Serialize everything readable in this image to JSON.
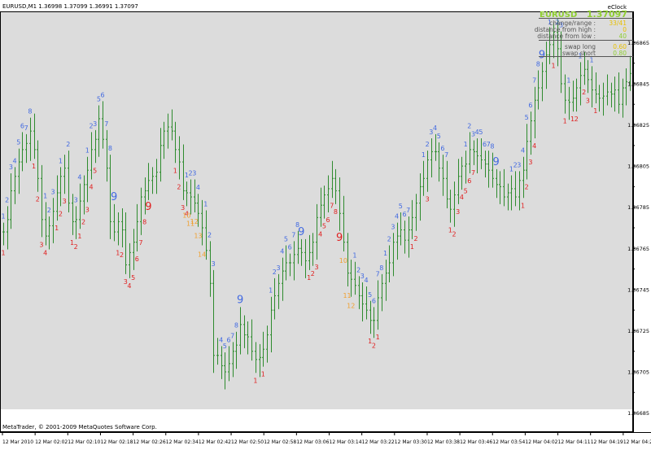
{
  "window": {
    "title": "EURUSD,M1  1.36998 1.37099 1.36991 1.37097"
  },
  "footer": {
    "copyright": "MetaTrader, © 2001-2009 MetaQuotes Software Corp."
  },
  "info_panel": {
    "indicator_name": "eClock",
    "symbol": "EURUSD",
    "price": "1.37097",
    "rows": [
      {
        "label": "change/range :",
        "value": "33/41"
      },
      {
        "label": "distance from high :",
        "value": "0"
      },
      {
        "label": "distance from low :",
        "value": "40"
      }
    ],
    "swap_rows": [
      {
        "label": "swap long",
        "value": "0.60"
      },
      {
        "label": "swap short",
        "value": "0.80"
      }
    ]
  },
  "colors": {
    "plot_bg": "#dcdcdc",
    "candle": "#2e8b2e",
    "count_up": "#4169e1",
    "count_down": "#e02020",
    "count_orange": "#f0a030",
    "panel_green": "#8fce32",
    "panel_yellow": "#e8c000",
    "axis_text": "#000000"
  },
  "chart_data": {
    "type": "candlestick",
    "symbol": "EURUSD",
    "timeframe": "M1",
    "ohlc": {
      "open": 1.36998,
      "high": 1.37099,
      "low": 1.36991,
      "close": 1.37097
    },
    "y_ticks": [
      "1.36865",
      "1.36845",
      "1.36825",
      "1.36805",
      "1.36785",
      "1.36765",
      "1.36745",
      "1.36725",
      "1.36705",
      "1.36685"
    ],
    "y_ticks_minor": [
      "1.36855",
      "1.36835",
      "1.36815",
      "1.36795",
      "1.36775",
      "1.36755",
      "1.36735",
      "1.36715",
      "1.36695"
    ],
    "x_ticks": [
      "12 Mar 2010",
      "12 Mar 02:02",
      "12 Mar 02:10",
      "12 Mar 02:18",
      "12 Mar 02:26",
      "12 Mar 02:34",
      "12 Mar 02:42",
      "12 Mar 02:50",
      "12 Mar 02:58",
      "12 Mar 03:06",
      "12 Mar 03:14",
      "12 Mar 03:22",
      "12 Mar 03:30",
      "12 Mar 03:38",
      "12 Mar 03:46",
      "12 Mar 03:54",
      "12 Mar 04:02",
      "12 Mar 04:11",
      "12 Mar 04:19",
      "12 Mar 04:27"
    ],
    "ylim": [
      1.36688,
      1.36877
    ],
    "closes": [
      1.36773,
      1.36779,
      1.36793,
      1.368,
      1.36807,
      1.36813,
      1.36816,
      1.36822,
      1.36813,
      1.36799,
      1.36779,
      1.36771,
      1.36776,
      1.36783,
      1.36792,
      1.368,
      1.36804,
      1.36787,
      1.36778,
      1.36779,
      1.36788,
      1.36796,
      1.36803,
      1.36813,
      1.36818,
      1.36828,
      1.36818,
      1.36804,
      1.36778,
      1.36773,
      1.36778,
      1.36774,
      1.36757,
      1.36763,
      1.36768,
      1.36778,
      1.3679,
      1.36793,
      1.36798,
      1.368,
      1.36802,
      1.36815,
      1.36822,
      1.36824,
      1.36822,
      1.36813,
      1.36807,
      1.36793,
      1.36792,
      1.3679,
      1.36787,
      1.36782,
      1.36775,
      1.36764,
      1.36748,
      1.36713,
      1.36713,
      1.36708,
      1.36705,
      1.36709,
      1.36715,
      1.36718,
      1.36728,
      1.36723,
      1.36722,
      1.36715,
      1.36711,
      1.36712,
      1.36716,
      1.36723,
      1.36735,
      1.36742,
      1.36748,
      1.36754,
      1.36758,
      1.36758,
      1.36762,
      1.36765,
      1.36763,
      1.36759,
      1.36763,
      1.36768,
      1.3678,
      1.36786,
      1.36791,
      1.36794,
      1.36799,
      1.36793,
      1.36782,
      1.36768,
      1.36753,
      1.3675,
      1.36747,
      1.36742,
      1.36738,
      1.36735,
      1.3673,
      1.3673,
      1.36741,
      1.36748,
      1.36753,
      1.36758,
      1.36768,
      1.36771,
      1.36774,
      1.36769,
      1.36774,
      1.3678,
      1.36787,
      1.36795,
      1.36799,
      1.36808,
      1.36812,
      1.36812,
      1.36804,
      1.36799,
      1.36789,
      1.36784,
      1.36791,
      1.368,
      1.36805,
      1.36806,
      1.36813,
      1.36812,
      1.3681,
      1.36808,
      1.36806,
      1.36803,
      1.36799,
      1.36796,
      1.36795,
      1.3679,
      1.36792,
      1.36794,
      1.3679,
      1.36798,
      1.36803,
      1.36817,
      1.36827,
      1.36837,
      1.36843,
      1.36851,
      1.36859,
      1.36864,
      1.3687,
      1.36862,
      1.36845,
      1.36837,
      1.36836,
      1.36838,
      1.36843,
      1.36849,
      1.36852,
      1.36847,
      1.36842,
      1.3684,
      1.36838,
      1.36839,
      1.36841,
      1.3684,
      1.36842,
      1.36835,
      1.36843,
      1.36846,
      1.3685
    ],
    "count_labels_up": [
      {
        "bar": 0,
        "text": "1",
        "size": "small"
      },
      {
        "bar": 1,
        "text": "2",
        "size": "small"
      },
      {
        "bar": 2,
        "text": "3",
        "size": "small"
      },
      {
        "bar": 3,
        "text": "4",
        "size": "small"
      },
      {
        "bar": 4,
        "text": "5",
        "size": "small"
      },
      {
        "bar": 5,
        "text": "6",
        "size": "small"
      },
      {
        "bar": 6,
        "text": "7",
        "size": "small"
      },
      {
        "bar": 7,
        "text": "8",
        "size": "small"
      },
      {
        "bar": 11,
        "text": "1",
        "size": "small"
      },
      {
        "bar": 12,
        "text": "2",
        "size": "small"
      },
      {
        "bar": 13,
        "text": "3",
        "size": "small"
      },
      {
        "bar": 15,
        "text": "1",
        "size": "small"
      },
      {
        "bar": 17,
        "text": "2",
        "size": "small"
      },
      {
        "bar": 19,
        "text": "3",
        "size": "small"
      },
      {
        "bar": 20,
        "text": "4",
        "size": "small"
      },
      {
        "bar": 22,
        "text": "1",
        "size": "small"
      },
      {
        "bar": 23,
        "text": "2",
        "size": "small"
      },
      {
        "bar": 24,
        "text": "3",
        "size": "small"
      },
      {
        "bar": 25,
        "text": "5",
        "size": "small"
      },
      {
        "bar": 26,
        "text": "6",
        "size": "small"
      },
      {
        "bar": 27,
        "text": "7",
        "size": "small"
      },
      {
        "bar": 28,
        "text": "8",
        "size": "small"
      },
      {
        "bar": 29,
        "text": "9",
        "size": "large"
      },
      {
        "bar": 48,
        "text": "1",
        "size": "small"
      },
      {
        "bar": 49,
        "text": "2",
        "size": "small"
      },
      {
        "bar": 50,
        "text": "3",
        "size": "small"
      },
      {
        "bar": 51,
        "text": "4",
        "size": "small"
      },
      {
        "bar": 53,
        "text": "1",
        "size": "small"
      },
      {
        "bar": 54,
        "text": "2",
        "size": "small"
      },
      {
        "bar": 55,
        "text": "3",
        "size": "small"
      },
      {
        "bar": 57,
        "text": "4",
        "size": "small"
      },
      {
        "bar": 58,
        "text": "5",
        "size": "small"
      },
      {
        "bar": 59,
        "text": "6",
        "size": "small"
      },
      {
        "bar": 60,
        "text": "7",
        "size": "small"
      },
      {
        "bar": 61,
        "text": "8",
        "size": "small"
      },
      {
        "bar": 62,
        "text": "9",
        "size": "large"
      },
      {
        "bar": 70,
        "text": "1",
        "size": "small"
      },
      {
        "bar": 71,
        "text": "2",
        "size": "small"
      },
      {
        "bar": 72,
        "text": "3",
        "size": "small"
      },
      {
        "bar": 73,
        "text": "4",
        "size": "small"
      },
      {
        "bar": 74,
        "text": "5",
        "size": "small"
      },
      {
        "bar": 75,
        "text": "6",
        "size": "small"
      },
      {
        "bar": 76,
        "text": "7",
        "size": "small"
      },
      {
        "bar": 77,
        "text": "8",
        "size": "small"
      },
      {
        "bar": 78,
        "text": "9",
        "size": "large"
      },
      {
        "bar": 92,
        "text": "1",
        "size": "small"
      },
      {
        "bar": 93,
        "text": "2",
        "size": "small"
      },
      {
        "bar": 94,
        "text": "3",
        "size": "small"
      },
      {
        "bar": 95,
        "text": "4",
        "size": "small"
      },
      {
        "bar": 96,
        "text": "5",
        "size": "small"
      },
      {
        "bar": 97,
        "text": "6",
        "size": "small"
      },
      {
        "bar": 98,
        "text": "7",
        "size": "small"
      },
      {
        "bar": 99,
        "text": "8",
        "size": "small"
      },
      {
        "bar": 100,
        "text": "1",
        "size": "small"
      },
      {
        "bar": 101,
        "text": "2",
        "size": "small"
      },
      {
        "bar": 102,
        "text": "3",
        "size": "small"
      },
      {
        "bar": 103,
        "text": "4",
        "size": "small"
      },
      {
        "bar": 104,
        "text": "5",
        "size": "small"
      },
      {
        "bar": 105,
        "text": "6",
        "size": "small"
      },
      {
        "bar": 106,
        "text": "7",
        "size": "small"
      },
      {
        "bar": 110,
        "text": "1",
        "size": "small"
      },
      {
        "bar": 111,
        "text": "2",
        "size": "small"
      },
      {
        "bar": 112,
        "text": "3",
        "size": "small"
      },
      {
        "bar": 113,
        "text": "4",
        "size": "small"
      },
      {
        "bar": 114,
        "text": "5",
        "size": "small"
      },
      {
        "bar": 115,
        "text": "6",
        "size": "small"
      },
      {
        "bar": 116,
        "text": "7",
        "size": "small"
      },
      {
        "bar": 121,
        "text": "1",
        "size": "small"
      },
      {
        "bar": 122,
        "text": "2",
        "size": "small"
      },
      {
        "bar": 123,
        "text": "3",
        "size": "small"
      },
      {
        "bar": 124,
        "text": "4",
        "size": "small"
      },
      {
        "bar": 125,
        "text": "5",
        "size": "small"
      },
      {
        "bar": 126,
        "text": "6",
        "size": "small"
      },
      {
        "bar": 127,
        "text": "7",
        "size": "small"
      },
      {
        "bar": 128,
        "text": "8",
        "size": "small"
      },
      {
        "bar": 129,
        "text": "9",
        "size": "large"
      },
      {
        "bar": 133,
        "text": "1",
        "size": "small"
      },
      {
        "bar": 134,
        "text": "2",
        "size": "small"
      },
      {
        "bar": 135,
        "text": "3",
        "size": "small"
      },
      {
        "bar": 136,
        "text": "4",
        "size": "small"
      },
      {
        "bar": 137,
        "text": "5",
        "size": "small"
      },
      {
        "bar": 138,
        "text": "6",
        "size": "small"
      },
      {
        "bar": 139,
        "text": "7",
        "size": "small"
      },
      {
        "bar": 140,
        "text": "8",
        "size": "small"
      },
      {
        "bar": 141,
        "text": "9",
        "size": "large"
      },
      {
        "bar": 143,
        "text": "1",
        "size": "small"
      },
      {
        "bar": 145,
        "text": "2",
        "size": "small"
      },
      {
        "bar": 146,
        "text": "3",
        "size": "small"
      },
      {
        "bar": 148,
        "text": "1",
        "size": "small"
      },
      {
        "bar": 151,
        "text": "1",
        "size": "small"
      },
      {
        "bar": 154,
        "text": "1",
        "size": "small"
      }
    ],
    "count_labels_down": [
      {
        "bar": 0,
        "text": "1",
        "size": "small"
      },
      {
        "bar": 8,
        "text": "1",
        "size": "small"
      },
      {
        "bar": 9,
        "text": "2",
        "size": "small"
      },
      {
        "bar": 10,
        "text": "3",
        "size": "small"
      },
      {
        "bar": 11,
        "text": "4",
        "size": "small"
      },
      {
        "bar": 14,
        "text": "1",
        "size": "small"
      },
      {
        "bar": 15,
        "text": "2",
        "size": "small"
      },
      {
        "bar": 16,
        "text": "3",
        "size": "small"
      },
      {
        "bar": 18,
        "text": "1",
        "size": "small"
      },
      {
        "bar": 19,
        "text": "2",
        "size": "small"
      },
      {
        "bar": 20,
        "text": "1",
        "size": "small"
      },
      {
        "bar": 21,
        "text": "2",
        "size": "small"
      },
      {
        "bar": 22,
        "text": "3",
        "size": "small"
      },
      {
        "bar": 23,
        "text": "4",
        "size": "small"
      },
      {
        "bar": 24,
        "text": "5",
        "size": "small"
      },
      {
        "bar": 30,
        "text": "1",
        "size": "small"
      },
      {
        "bar": 31,
        "text": "2",
        "size": "small"
      },
      {
        "bar": 32,
        "text": "3",
        "size": "small"
      },
      {
        "bar": 33,
        "text": "4",
        "size": "small"
      },
      {
        "bar": 34,
        "text": "5",
        "size": "small"
      },
      {
        "bar": 35,
        "text": "6",
        "size": "small"
      },
      {
        "bar": 36,
        "text": "7",
        "size": "small"
      },
      {
        "bar": 37,
        "text": "8",
        "size": "small"
      },
      {
        "bar": 38,
        "text": "9",
        "size": "large"
      },
      {
        "bar": 45,
        "text": "1",
        "size": "small"
      },
      {
        "bar": 46,
        "text": "2",
        "size": "small"
      },
      {
        "bar": 47,
        "text": "3",
        "size": "small"
      },
      {
        "bar": 48,
        "text": "4",
        "size": "small"
      },
      {
        "bar": 66,
        "text": "1",
        "size": "small"
      },
      {
        "bar": 68,
        "text": "1",
        "size": "small"
      },
      {
        "bar": 80,
        "text": "1",
        "size": "small"
      },
      {
        "bar": 81,
        "text": "2",
        "size": "small"
      },
      {
        "bar": 82,
        "text": "3",
        "size": "small"
      },
      {
        "bar": 83,
        "text": "4",
        "size": "small"
      },
      {
        "bar": 84,
        "text": "5",
        "size": "small"
      },
      {
        "bar": 85,
        "text": "6",
        "size": "small"
      },
      {
        "bar": 86,
        "text": "7",
        "size": "small"
      },
      {
        "bar": 87,
        "text": "8",
        "size": "small"
      },
      {
        "bar": 88,
        "text": "9",
        "size": "large"
      },
      {
        "bar": 96,
        "text": "1",
        "size": "small"
      },
      {
        "bar": 97,
        "text": "2",
        "size": "small"
      },
      {
        "bar": 98,
        "text": "1",
        "size": "small"
      },
      {
        "bar": 107,
        "text": "1",
        "size": "small"
      },
      {
        "bar": 108,
        "text": "2",
        "size": "small"
      },
      {
        "bar": 111,
        "text": "3",
        "size": "small"
      },
      {
        "bar": 117,
        "text": "1",
        "size": "small"
      },
      {
        "bar": 118,
        "text": "2",
        "size": "small"
      },
      {
        "bar": 119,
        "text": "3",
        "size": "small"
      },
      {
        "bar": 120,
        "text": "4",
        "size": "small"
      },
      {
        "bar": 121,
        "text": "5",
        "size": "small"
      },
      {
        "bar": 122,
        "text": "6",
        "size": "small"
      },
      {
        "bar": 123,
        "text": "7",
        "size": "small"
      },
      {
        "bar": 136,
        "text": "1",
        "size": "small"
      },
      {
        "bar": 137,
        "text": "2",
        "size": "small"
      },
      {
        "bar": 138,
        "text": "3",
        "size": "small"
      },
      {
        "bar": 139,
        "text": "4",
        "size": "small"
      },
      {
        "bar": 144,
        "text": "1",
        "size": "small"
      },
      {
        "bar": 147,
        "text": "1",
        "size": "small"
      },
      {
        "bar": 149,
        "text": "1",
        "size": "small"
      },
      {
        "bar": 150,
        "text": "2",
        "size": "small"
      },
      {
        "bar": 152,
        "text": "2",
        "size": "small"
      },
      {
        "bar": 153,
        "text": "3",
        "size": "small"
      },
      {
        "bar": 155,
        "text": "1",
        "size": "small"
      }
    ],
    "count_labels_orange": [
      {
        "bar": 48,
        "text": "10",
        "size": "small"
      },
      {
        "bar": 49,
        "text": "11",
        "size": "small"
      },
      {
        "bar": 50,
        "text": "12",
        "size": "small"
      },
      {
        "bar": 51,
        "text": "13",
        "size": "small"
      },
      {
        "bar": 52,
        "text": "14",
        "size": "small"
      },
      {
        "bar": 89,
        "text": "10",
        "size": "small"
      },
      {
        "bar": 90,
        "text": "11",
        "size": "small"
      },
      {
        "bar": 91,
        "text": "12",
        "size": "small"
      }
    ]
  }
}
